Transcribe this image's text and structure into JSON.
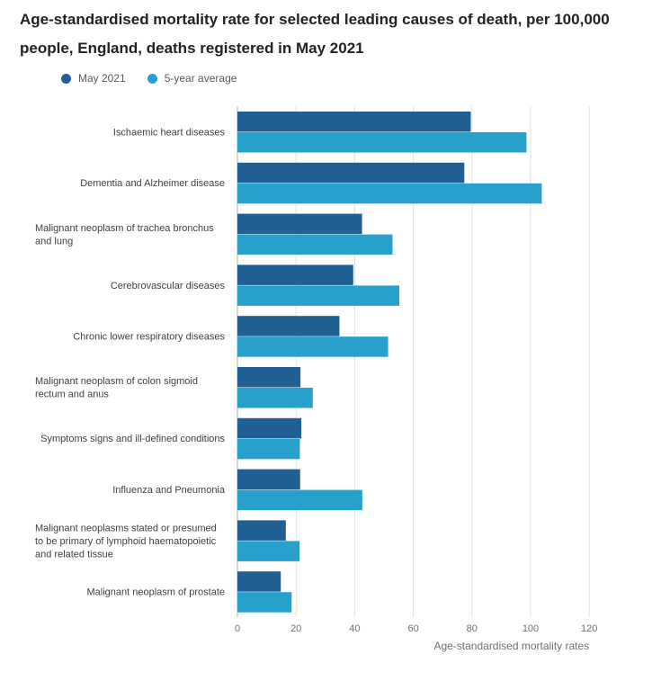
{
  "chart_data": {
    "type": "bar",
    "orientation": "horizontal",
    "title": "Age-standardised mortality rate for selected leading causes of death, per 100,000 people, England, deaths registered in May 2021",
    "xlabel": "Age-standardised mortality rates",
    "ylabel": "",
    "xlim": [
      0,
      120
    ],
    "xticks": [
      "0",
      "20",
      "40",
      "60",
      "80",
      "100",
      "120"
    ],
    "grid": true,
    "legend_position": "top-left",
    "categories": [
      [
        "Ischaemic heart diseases"
      ],
      [
        "Dementia and Alzheimer disease"
      ],
      [
        "Malignant neoplasm of trachea bronchus",
        "and lung"
      ],
      [
        "Cerebrovascular diseases"
      ],
      [
        "Chronic lower respiratory diseases"
      ],
      [
        "Malignant neoplasm of colon sigmoid",
        "rectum and anus"
      ],
      [
        "Symptoms signs and ill-defined conditions"
      ],
      [
        "Influenza and Pneumonia"
      ],
      [
        "Malignant neoplasms stated or presumed",
        "to be primary of lymphoid haematopoietic",
        "and related tissue"
      ],
      [
        "Malignant neoplasm of prostate"
      ]
    ],
    "series": [
      {
        "name": "May 2021",
        "color": "#206095",
        "values": [
          79.6,
          77.4,
          42.5,
          39.5,
          34.8,
          21.5,
          21.8,
          21.4,
          16.5,
          14.8
        ]
      },
      {
        "name": "5-year average",
        "color": "#27a0cc",
        "values": [
          98.6,
          103.8,
          52.9,
          55.2,
          51.4,
          25.7,
          21.3,
          42.6,
          21.2,
          18.5
        ]
      }
    ]
  }
}
